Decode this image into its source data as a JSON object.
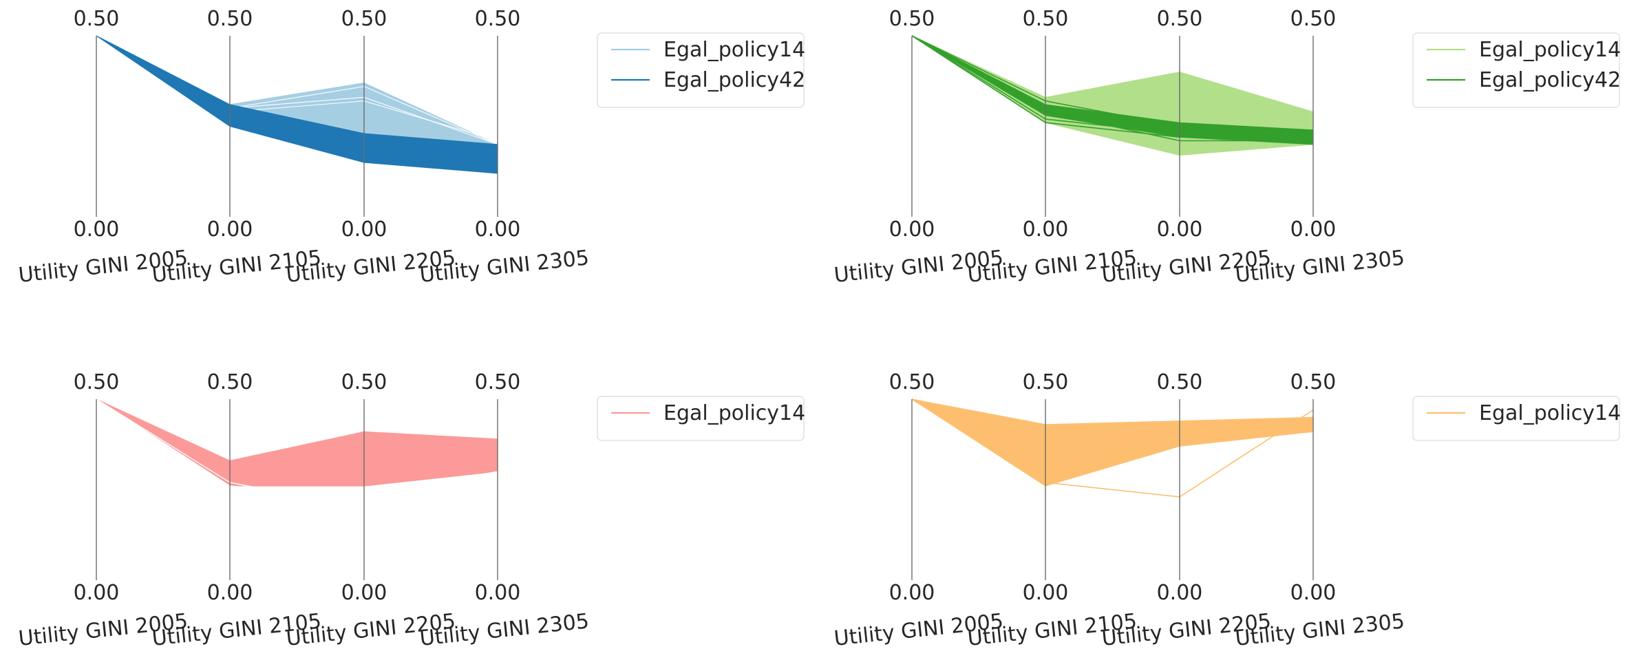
{
  "chart_data": [
    {
      "type": "parallel_coordinates",
      "axes": [
        "Utility GINI 2005",
        "Utility GINI 2105",
        "Utility GINI 2205",
        "Utility GINI 2305"
      ],
      "axis_top_labels": [
        "0.50",
        "0.50",
        "0.50",
        "0.50"
      ],
      "axis_bottom_labels": [
        "0.00",
        "0.00",
        "0.00",
        "0.00"
      ],
      "ylim": [
        0,
        0.5
      ],
      "grid": false,
      "legend": {
        "placement": "right",
        "entries": [
          "Egal_policy14",
          "Egal_policy42"
        ]
      },
      "series": [
        {
          "name": "Egal_policy14",
          "color": "#a6cee3",
          "bands": [
            {
              "upper": [
                0.5,
                0.31,
                0.37,
                0.2
              ],
              "lower": [
                0.5,
                0.26,
                0.22,
                0.2
              ]
            }
          ],
          "lines": [
            [
              0.5,
              0.3,
              0.36,
              0.2
            ],
            [
              0.5,
              0.3,
              0.33,
              0.2
            ],
            [
              0.5,
              0.29,
              0.32,
              0.21
            ]
          ]
        },
        {
          "name": "Egal_policy42",
          "color": "#1f78b4",
          "bands": [
            {
              "upper": [
                0.5,
                0.31,
                0.23,
                0.2
              ],
              "lower": [
                0.5,
                0.25,
                0.15,
                0.12
              ]
            }
          ],
          "lines": []
        }
      ]
    },
    {
      "type": "parallel_coordinates",
      "axes": [
        "Utility GINI 2005",
        "Utility GINI 2105",
        "Utility GINI 2205",
        "Utility GINI 2305"
      ],
      "axis_top_labels": [
        "0.50",
        "0.50",
        "0.50",
        "0.50"
      ],
      "axis_bottom_labels": [
        "0.00",
        "0.00",
        "0.00",
        "0.00"
      ],
      "ylim": [
        0,
        0.5
      ],
      "grid": false,
      "legend": {
        "placement": "right",
        "entries": [
          "Egal_policy14",
          "Egal_policy42"
        ]
      },
      "series": [
        {
          "name": "Egal_policy14",
          "color": "#b2df8a",
          "bands": [
            {
              "upper": [
                0.5,
                0.33,
                0.4,
                0.29
              ],
              "lower": [
                0.5,
                0.26,
                0.17,
                0.2
              ]
            }
          ],
          "lines": []
        },
        {
          "name": "Egal_policy42",
          "color": "#33a02c",
          "bands": [
            {
              "upper": [
                0.5,
                0.31,
                0.26,
                0.24
              ],
              "lower": [
                0.5,
                0.28,
                0.22,
                0.2
              ]
            }
          ],
          "lines": [
            [
              0.5,
              0.29,
              0.21,
              0.21
            ],
            [
              0.5,
              0.27,
              0.23,
              0.23
            ],
            [
              0.5,
              0.32,
              0.25,
              0.22
            ],
            [
              0.5,
              0.26,
              0.22,
              0.24
            ]
          ]
        }
      ]
    },
    {
      "type": "parallel_coordinates",
      "axes": [
        "Utility GINI 2005",
        "Utility GINI 2105",
        "Utility GINI 2205",
        "Utility GINI 2305"
      ],
      "axis_top_labels": [
        "0.50",
        "0.50",
        "0.50",
        "0.50"
      ],
      "axis_bottom_labels": [
        "0.00",
        "0.00",
        "0.00",
        "0.00"
      ],
      "ylim": [
        0,
        0.5
      ],
      "grid": false,
      "legend": {
        "placement": "right",
        "entries": [
          "Egal_policy14"
        ]
      },
      "series": [
        {
          "name": "Egal_policy14",
          "color": "#fb9a99",
          "bands": [
            {
              "upper": [
                0.5,
                0.33,
                0.41,
                0.39
              ],
              "lower": [
                0.5,
                0.26,
                0.26,
                0.3
              ]
            }
          ],
          "lines": [
            [
              0.5,
              0.26,
              0.24,
              0.3
            ],
            [
              0.5,
              0.26,
              0.22,
              0.3
            ],
            [
              0.5,
              0.26,
              0.21,
              0.3
            ],
            [
              0.5,
              0.27,
              0.19,
              0.3
            ],
            [
              0.5,
              0.26,
              0.23,
              0.3
            ],
            [
              0.5,
              0.27,
              0.2,
              0.3
            ]
          ]
        }
      ]
    },
    {
      "type": "parallel_coordinates",
      "axes": [
        "Utility GINI 2005",
        "Utility GINI 2105",
        "Utility GINI 2205",
        "Utility GINI 2305"
      ],
      "axis_top_labels": [
        "0.50",
        "0.50",
        "0.50",
        "0.50"
      ],
      "axis_bottom_labels": [
        "0.00",
        "0.00",
        "0.00",
        "0.00"
      ],
      "ylim": [
        0,
        0.5
      ],
      "grid": false,
      "legend": {
        "placement": "right",
        "entries": [
          "Egal_policy14"
        ]
      },
      "series": [
        {
          "name": "Egal_policy14",
          "color": "#fdbf6f",
          "bands": [
            {
              "upper": [
                0.5,
                0.43,
                0.44,
                0.45
              ],
              "lower": [
                0.5,
                0.26,
                0.37,
                0.41
              ]
            }
          ],
          "lines": [
            [
              0.5,
              0.42,
              0.43,
              0.44
            ],
            [
              0.5,
              0.4,
              0.41,
              0.45
            ],
            [
              0.5,
              0.35,
              0.4,
              0.43
            ],
            [
              0.5,
              0.27,
              0.38,
              0.42
            ],
            [
              0.5,
              0.3,
              0.39,
              0.41
            ],
            [
              0.5,
              0.27,
              0.23,
              0.47
            ]
          ]
        }
      ]
    }
  ]
}
